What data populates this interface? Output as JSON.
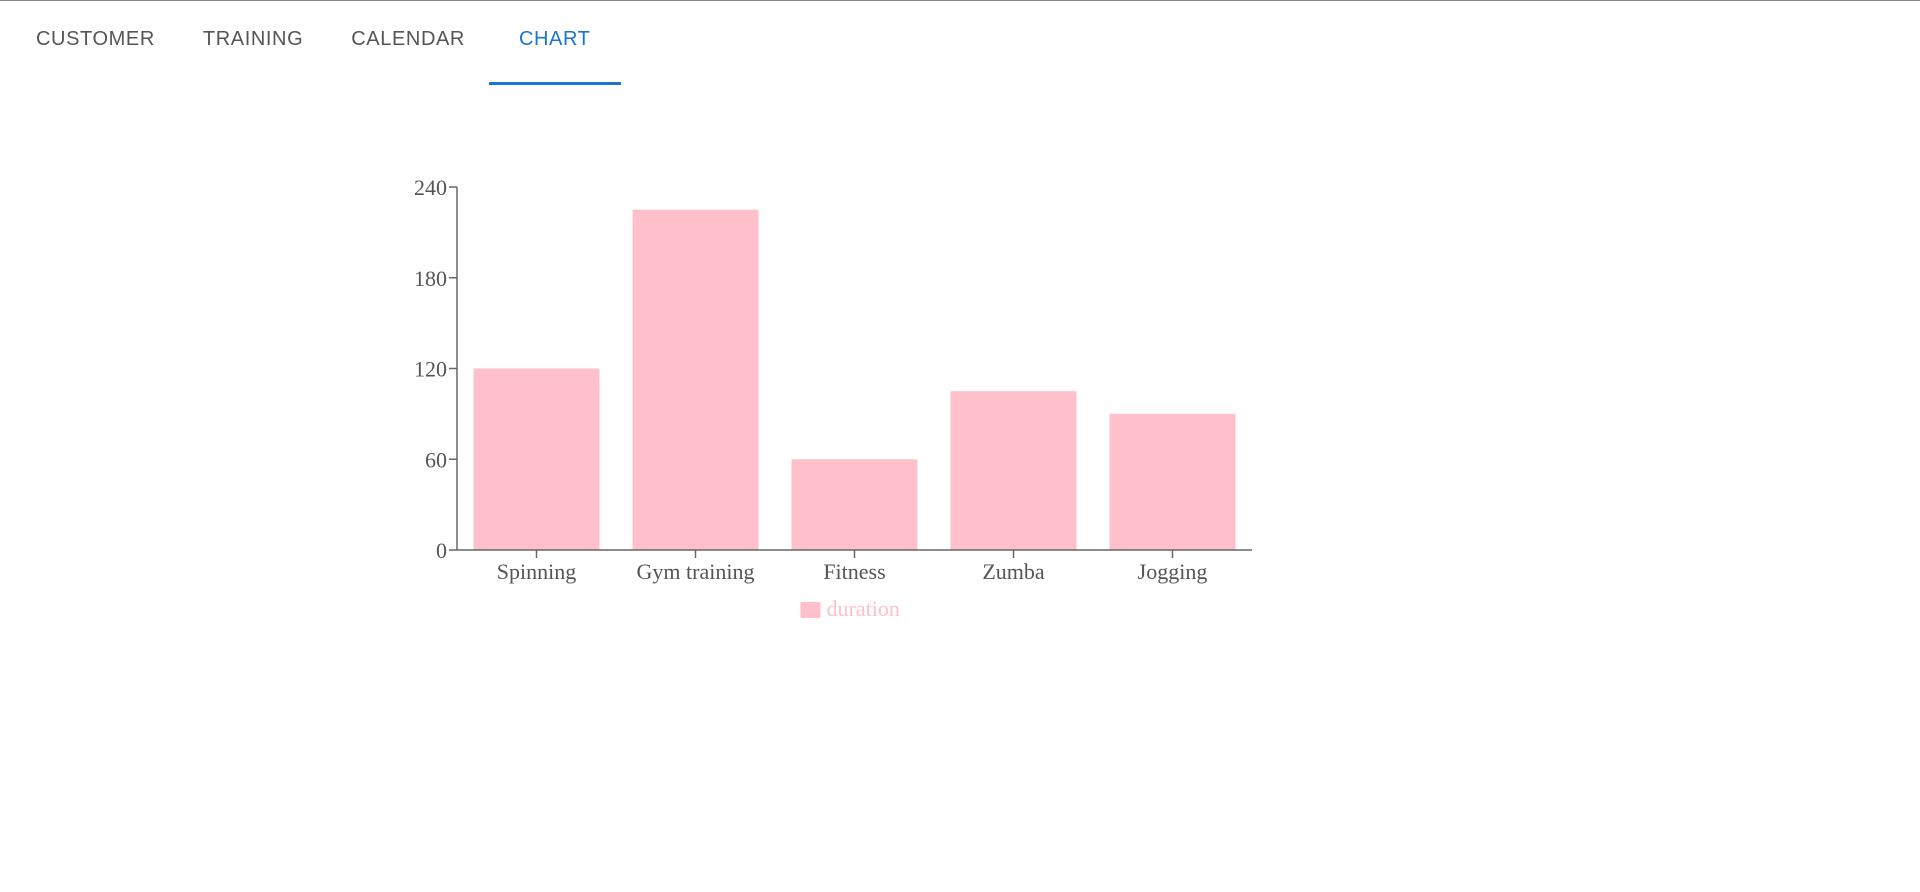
{
  "tabs": [
    {
      "label": "CUSTOMER",
      "active": false
    },
    {
      "label": "TRAINING",
      "active": false
    },
    {
      "label": "CALENDAR",
      "active": false
    },
    {
      "label": "CHART",
      "active": true
    }
  ],
  "colors": {
    "accent": "#1976d2",
    "bar": "#ffc0cb",
    "axis": "#666666",
    "tab_text": "#555555"
  },
  "chart_data": {
    "type": "bar",
    "categories": [
      "Spinning",
      "Gym training",
      "Fitness",
      "Zumba",
      "Jogging"
    ],
    "series": [
      {
        "name": "duration",
        "values": [
          120,
          225,
          60,
          105,
          90
        ]
      }
    ],
    "yticks": [
      0,
      60,
      120,
      180,
      240
    ],
    "ylim": [
      0,
      240
    ],
    "xlabel": "",
    "ylabel": "",
    "grid": false,
    "legend_position": "bottom"
  }
}
